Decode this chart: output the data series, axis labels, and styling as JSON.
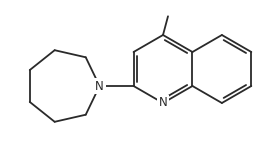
{
  "bg_color": "#ffffff",
  "line_color": "#2a2a2a",
  "line_width": 1.3,
  "figsize": [
    2.74,
    1.45
  ],
  "dpi": 100,
  "font_size": 8.5
}
